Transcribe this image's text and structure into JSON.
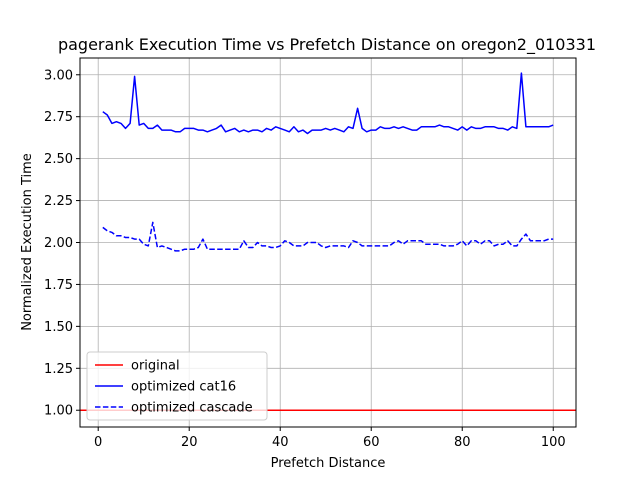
{
  "chart_data": {
    "type": "line",
    "title": "pagerank Execution Time vs Prefetch Distance on oregon2_010331",
    "xlabel": "Prefetch Distance",
    "ylabel": "Normalized Execution Time",
    "xlim": [
      -4,
      105
    ],
    "ylim": [
      0.9,
      3.1
    ],
    "xticks": [
      0,
      20,
      40,
      60,
      80,
      100
    ],
    "yticks": [
      1.0,
      1.25,
      1.5,
      1.75,
      2.0,
      2.25,
      2.5,
      2.75,
      3.0
    ],
    "grid": true,
    "legend_position": "lower-left",
    "series": [
      {
        "name": "original",
        "color": "#ff0000",
        "style": "solid",
        "x": [
          -4,
          105
        ],
        "y": [
          1.0,
          1.0
        ]
      },
      {
        "name": "optimized cat16",
        "color": "#0000ff",
        "style": "solid",
        "x": [
          1,
          2,
          3,
          4,
          5,
          6,
          7,
          8,
          9,
          10,
          11,
          12,
          13,
          14,
          15,
          16,
          17,
          18,
          19,
          20,
          21,
          22,
          23,
          24,
          25,
          26,
          27,
          28,
          29,
          30,
          31,
          32,
          33,
          34,
          35,
          36,
          37,
          38,
          39,
          40,
          41,
          42,
          43,
          44,
          45,
          46,
          47,
          48,
          49,
          50,
          51,
          52,
          53,
          54,
          55,
          56,
          57,
          58,
          59,
          60,
          61,
          62,
          63,
          64,
          65,
          66,
          67,
          68,
          69,
          70,
          71,
          72,
          73,
          74,
          75,
          76,
          77,
          78,
          79,
          80,
          81,
          82,
          83,
          84,
          85,
          86,
          87,
          88,
          89,
          90,
          91,
          92,
          93,
          94,
          95,
          96,
          97,
          98,
          99,
          100
        ],
        "y": [
          2.78,
          2.76,
          2.71,
          2.72,
          2.71,
          2.68,
          2.71,
          2.99,
          2.7,
          2.71,
          2.68,
          2.68,
          2.7,
          2.67,
          2.67,
          2.67,
          2.66,
          2.66,
          2.68,
          2.68,
          2.68,
          2.67,
          2.67,
          2.66,
          2.67,
          2.68,
          2.7,
          2.66,
          2.67,
          2.68,
          2.66,
          2.67,
          2.66,
          2.67,
          2.67,
          2.66,
          2.68,
          2.67,
          2.69,
          2.68,
          2.67,
          2.66,
          2.69,
          2.66,
          2.67,
          2.65,
          2.67,
          2.67,
          2.67,
          2.68,
          2.67,
          2.68,
          2.67,
          2.66,
          2.69,
          2.68,
          2.8,
          2.68,
          2.66,
          2.67,
          2.67,
          2.69,
          2.68,
          2.68,
          2.69,
          2.68,
          2.69,
          2.68,
          2.67,
          2.67,
          2.69,
          2.69,
          2.69,
          2.69,
          2.7,
          2.69,
          2.69,
          2.68,
          2.67,
          2.69,
          2.67,
          2.69,
          2.68,
          2.68,
          2.69,
          2.69,
          2.69,
          2.68,
          2.68,
          2.67,
          2.69,
          2.68,
          3.01,
          2.69,
          2.69,
          2.69,
          2.69,
          2.69,
          2.69,
          2.7
        ]
      },
      {
        "name": "optimized cascade",
        "color": "#0000ff",
        "style": "dashed",
        "x": [
          1,
          2,
          3,
          4,
          5,
          6,
          7,
          8,
          9,
          10,
          11,
          12,
          13,
          14,
          15,
          16,
          17,
          18,
          19,
          20,
          21,
          22,
          23,
          24,
          25,
          26,
          27,
          28,
          29,
          30,
          31,
          32,
          33,
          34,
          35,
          36,
          37,
          38,
          39,
          40,
          41,
          42,
          43,
          44,
          45,
          46,
          47,
          48,
          49,
          50,
          51,
          52,
          53,
          54,
          55,
          56,
          57,
          58,
          59,
          60,
          61,
          62,
          63,
          64,
          65,
          66,
          67,
          68,
          69,
          70,
          71,
          72,
          73,
          74,
          75,
          76,
          77,
          78,
          79,
          80,
          81,
          82,
          83,
          84,
          85,
          86,
          87,
          88,
          89,
          90,
          91,
          92,
          93,
          94,
          95,
          96,
          97,
          98,
          99,
          100
        ],
        "y": [
          2.09,
          2.07,
          2.06,
          2.04,
          2.04,
          2.03,
          2.03,
          2.02,
          2.02,
          1.99,
          1.98,
          2.12,
          1.97,
          1.98,
          1.97,
          1.96,
          1.95,
          1.95,
          1.96,
          1.96,
          1.96,
          1.97,
          2.02,
          1.96,
          1.96,
          1.96,
          1.96,
          1.96,
          1.96,
          1.96,
          1.96,
          2.01,
          1.97,
          1.97,
          2.0,
          1.98,
          1.98,
          1.97,
          1.97,
          1.98,
          2.01,
          2.0,
          1.98,
          1.98,
          1.98,
          2.0,
          2.0,
          2.0,
          1.98,
          1.97,
          1.98,
          1.98,
          1.98,
          1.98,
          1.97,
          2.01,
          2.0,
          1.98,
          1.98,
          1.98,
          1.98,
          1.98,
          1.98,
          1.98,
          2.0,
          2.01,
          1.99,
          2.01,
          2.01,
          2.01,
          2.01,
          1.99,
          1.99,
          1.99,
          1.99,
          1.98,
          1.98,
          1.98,
          1.99,
          2.01,
          1.98,
          2.01,
          2.01,
          1.99,
          2.01,
          2.01,
          1.98,
          1.99,
          1.99,
          2.01,
          1.98,
          1.98,
          2.02,
          2.05,
          2.01,
          2.01,
          2.01,
          2.01,
          2.02,
          2.02
        ]
      }
    ]
  }
}
